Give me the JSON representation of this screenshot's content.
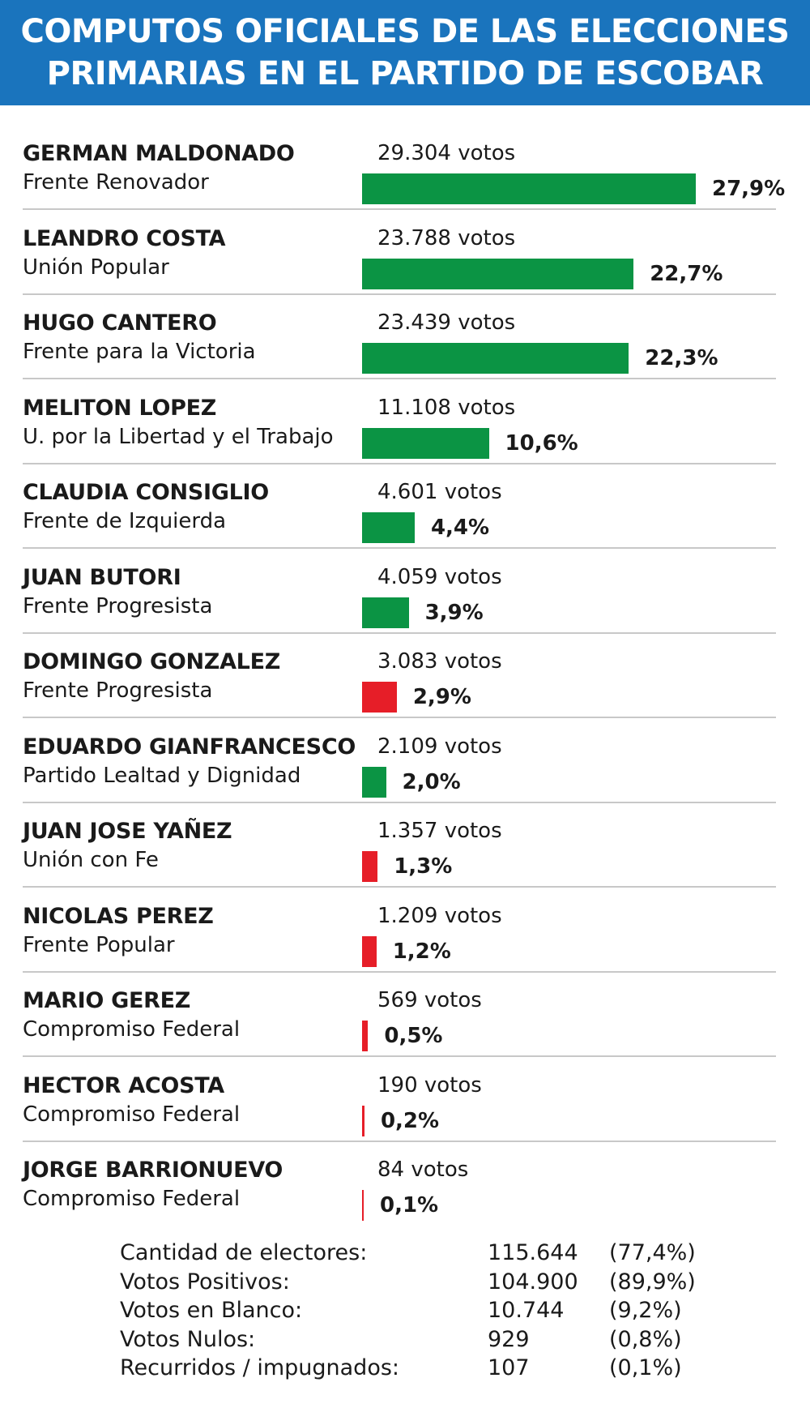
{
  "header": {
    "line1": "COMPUTOS OFICIALES DE LAS ELECCIONES",
    "line2": "PRIMARIAS EN EL PARTIDO DE ESCOBAR"
  },
  "colors": {
    "header_bg": "#1a74bd",
    "bar_green": "#0b9444",
    "bar_red": "#e61e28",
    "divider": "#c8c8c8"
  },
  "chart_data": {
    "type": "bar",
    "orientation": "horizontal",
    "title": "COMPUTOS OFICIALES DE LAS ELECCIONES PRIMARIAS EN EL PARTIDO DE ESCOBAR",
    "xlim": [
      0,
      27.9
    ],
    "grid": false,
    "candidates": [
      {
        "name": "GERMAN MALDONADO",
        "party": "Frente Renovador",
        "votes_label": "29.304 votos",
        "votes": 29304,
        "pct_label": "27,9%",
        "pct": 27.9,
        "color": "#0b9444"
      },
      {
        "name": "LEANDRO COSTA",
        "party": "Unión Popular",
        "votes_label": "23.788 votos",
        "votes": 23788,
        "pct_label": "22,7%",
        "pct": 22.7,
        "color": "#0b9444"
      },
      {
        "name": "HUGO CANTERO",
        "party": "Frente para la Victoria",
        "votes_label": "23.439 votos",
        "votes": 23439,
        "pct_label": "22,3%",
        "pct": 22.3,
        "color": "#0b9444"
      },
      {
        "name": "MELITON LOPEZ",
        "party": "U. por la Libertad y el Trabajo",
        "votes_label": "11.108 votos",
        "votes": 11108,
        "pct_label": "10,6%",
        "pct": 10.6,
        "color": "#0b9444"
      },
      {
        "name": "CLAUDIA CONSIGLIO",
        "party": "Frente de Izquierda",
        "votes_label": "4.601 votos",
        "votes": 4601,
        "pct_label": "4,4%",
        "pct": 4.4,
        "color": "#0b9444"
      },
      {
        "name": "JUAN BUTORI",
        "party": "Frente Progresista",
        "votes_label": "4.059 votos",
        "votes": 4059,
        "pct_label": "3,9%",
        "pct": 3.9,
        "color": "#0b9444"
      },
      {
        "name": "DOMINGO GONZALEZ",
        "party": "Frente Progresista",
        "votes_label": "3.083 votos",
        "votes": 3083,
        "pct_label": "2,9%",
        "pct": 2.9,
        "color": "#e61e28"
      },
      {
        "name": "EDUARDO GIANFRANCESCO",
        "party": "Partido Lealtad y Dignidad",
        "votes_label": "2.109 votos",
        "votes": 2109,
        "pct_label": "2,0%",
        "pct": 2.0,
        "color": "#0b9444"
      },
      {
        "name": "JUAN JOSE YAÑEZ",
        "party": "Unión con Fe",
        "votes_label": "1.357 votos",
        "votes": 1357,
        "pct_label": "1,3%",
        "pct": 1.3,
        "color": "#e61e28"
      },
      {
        "name": "NICOLAS PEREZ",
        "party": "Frente Popular",
        "votes_label": "1.209 votos",
        "votes": 1209,
        "pct_label": "1,2%",
        "pct": 1.2,
        "color": "#e61e28"
      },
      {
        "name": "MARIO GEREZ",
        "party": "Compromiso Federal",
        "votes_label": "569 votos",
        "votes": 569,
        "pct_label": "0,5%",
        "pct": 0.5,
        "color": "#e61e28"
      },
      {
        "name": "HECTOR ACOSTA",
        "party": "Compromiso Federal",
        "votes_label": "190 votos",
        "votes": 190,
        "pct_label": "0,2%",
        "pct": 0.2,
        "color": "#e61e28"
      },
      {
        "name": "JORGE BARRIONUEVO",
        "party": "Compromiso Federal",
        "votes_label": "84 votos",
        "votes": 84,
        "pct_label": "0,1%",
        "pct": 0.1,
        "color": "#e61e28"
      }
    ]
  },
  "summary": [
    {
      "label": "Cantidad de electores:",
      "value": "115.644",
      "pct": "(77,4%)"
    },
    {
      "label": "Votos Positivos:",
      "value": "104.900",
      "pct": "(89,9%)"
    },
    {
      "label": "Votos en Blanco:",
      "value": "10.744",
      "pct": "(9,2%)"
    },
    {
      "label": "Votos Nulos:",
      "value": "929",
      "pct": "(0,8%)"
    },
    {
      "label": "Recurridos / impugnados:",
      "value": "107",
      "pct": "(0,1%)"
    }
  ]
}
